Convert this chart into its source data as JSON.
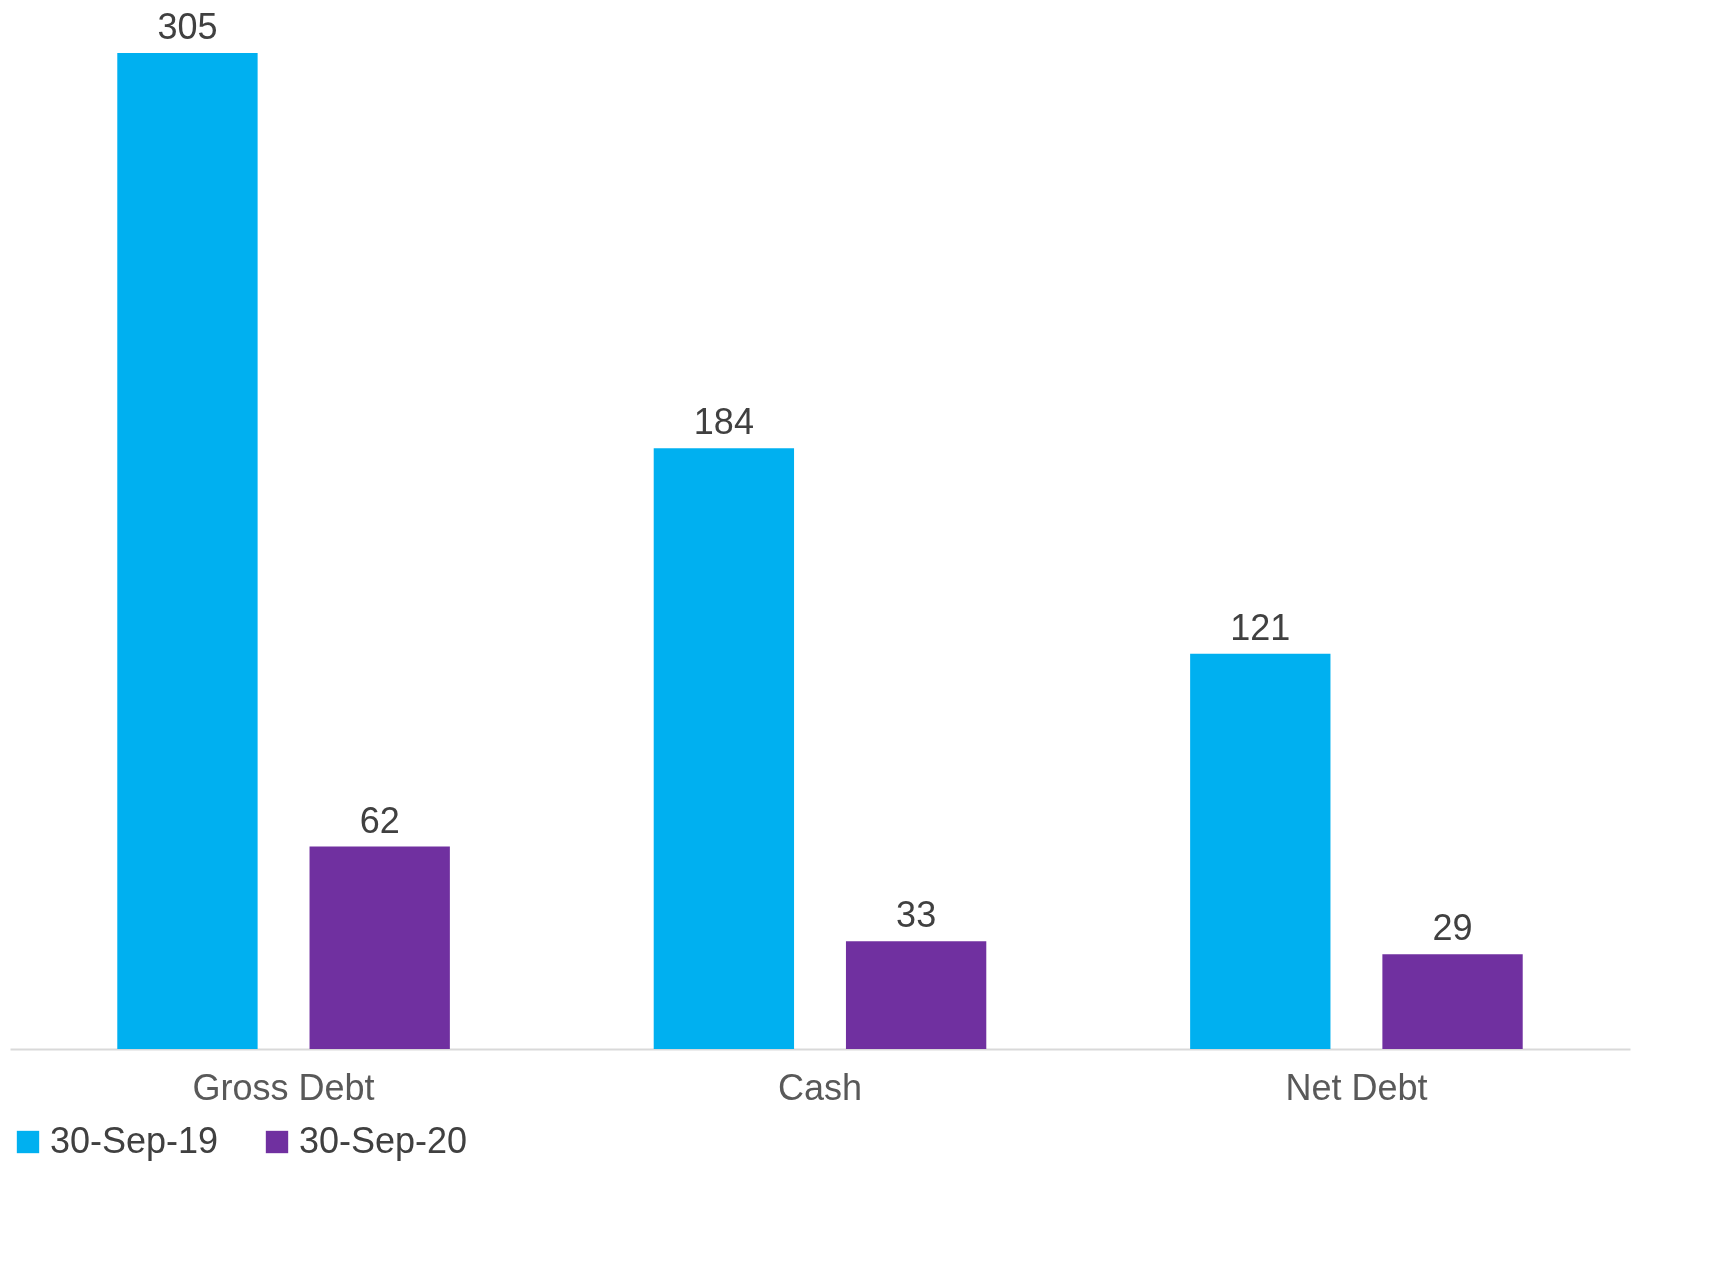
{
  "chart_data": {
    "type": "bar",
    "categories": [
      "Gross Debt",
      "Cash",
      "Net Debt"
    ],
    "series": [
      {
        "name": "30-Sep-19",
        "color": "#00b0f0",
        "values": [
          305,
          184,
          121
        ]
      },
      {
        "name": "30-Sep-20",
        "color": "#7030a0",
        "values": [
          62,
          33,
          29
        ]
      }
    ],
    "data_labels": true,
    "legend": "bottom",
    "grid": false
  }
}
